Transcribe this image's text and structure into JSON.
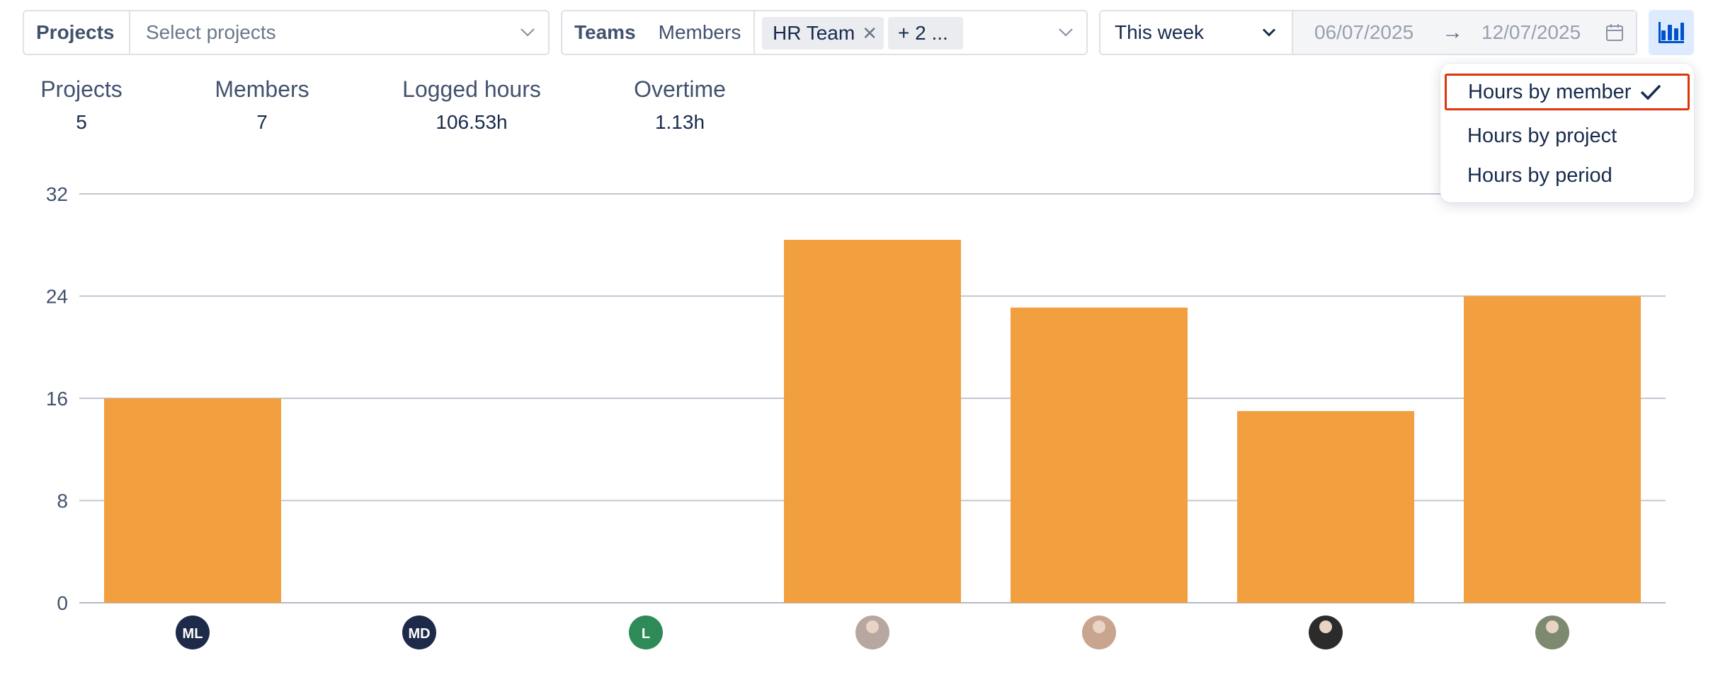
{
  "filters": {
    "projects": {
      "label": "Projects",
      "placeholder": "Select projects"
    },
    "teams": {
      "label": "Teams",
      "members_label": "Members",
      "chips": [
        "HR Team",
        "+ 2 ..."
      ]
    },
    "period": {
      "selected": "This week",
      "date_from": "06/07/2025",
      "date_to": "12/07/2025",
      "separator": "→"
    }
  },
  "stats": [
    {
      "title": "Projects",
      "value": "5"
    },
    {
      "title": "Members",
      "value": "7"
    },
    {
      "title": "Logged hours",
      "value": "106.53h"
    },
    {
      "title": "Overtime",
      "value": "1.13h"
    }
  ],
  "view_menu": {
    "items": [
      "Hours by member",
      "Hours by project",
      "Hours by period"
    ],
    "selected_index": 0
  },
  "colors": {
    "bar": "#f29f40",
    "accent": "#de350b",
    "toggle_bg": "#deebff",
    "toggle_icon": "#0052cc"
  },
  "chart_data": {
    "type": "bar",
    "categories": [
      "ML",
      "MD",
      "L",
      "avatar-4",
      "avatar-5",
      "avatar-6",
      "avatar-7"
    ],
    "category_avatars": [
      {
        "initials": "ML",
        "color": "#1e2a4a"
      },
      {
        "initials": "MD",
        "color": "#1e2a4a"
      },
      {
        "initials": "L",
        "color": "#2e8b57"
      },
      {
        "initials": "",
        "color": "#b8a7a0"
      },
      {
        "initials": "",
        "color": "#c9a48f"
      },
      {
        "initials": "",
        "color": "#2b2b2b"
      },
      {
        "initials": "",
        "color": "#7d8a6f"
      }
    ],
    "values": [
      16,
      0,
      0,
      28.4,
      23.1,
      15,
      24
    ],
    "yticks": [
      0,
      8,
      16,
      24,
      32
    ],
    "ylim": [
      0,
      32
    ],
    "grid": true
  }
}
